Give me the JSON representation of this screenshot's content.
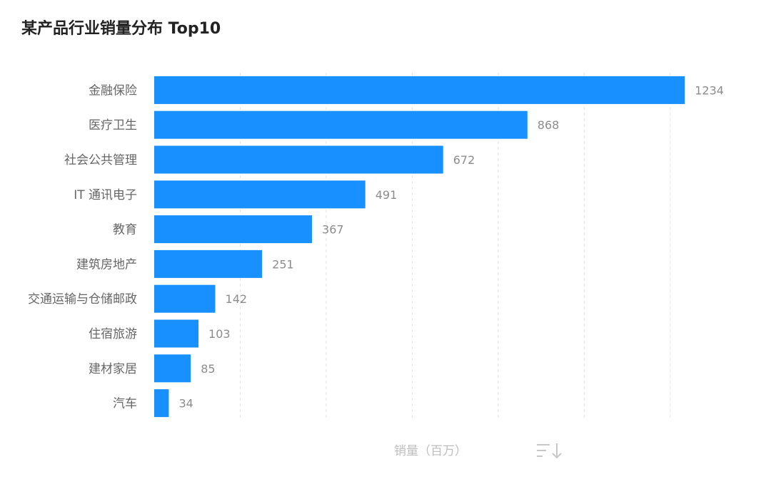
{
  "chart_data": {
    "type": "bar",
    "orientation": "horizontal",
    "title": "某产品行业销量分布 Top10",
    "xlabel": "销量（百万）",
    "ylabel": "",
    "xlim": [
      0,
      1300
    ],
    "grid": "vertical-dashed",
    "bar_color": "#1890ff",
    "categories": [
      "金融保险",
      "医疗卫生",
      "社会公共管理",
      "IT 通讯电子",
      "教育",
      "建筑房地产",
      "交通运输与仓储邮政",
      "住宿旅游",
      "建材家居",
      "汽车"
    ],
    "values": [
      1234,
      868,
      672,
      491,
      367,
      251,
      142,
      103,
      85,
      34
    ],
    "sort_icon": "sort-descending-icon"
  }
}
